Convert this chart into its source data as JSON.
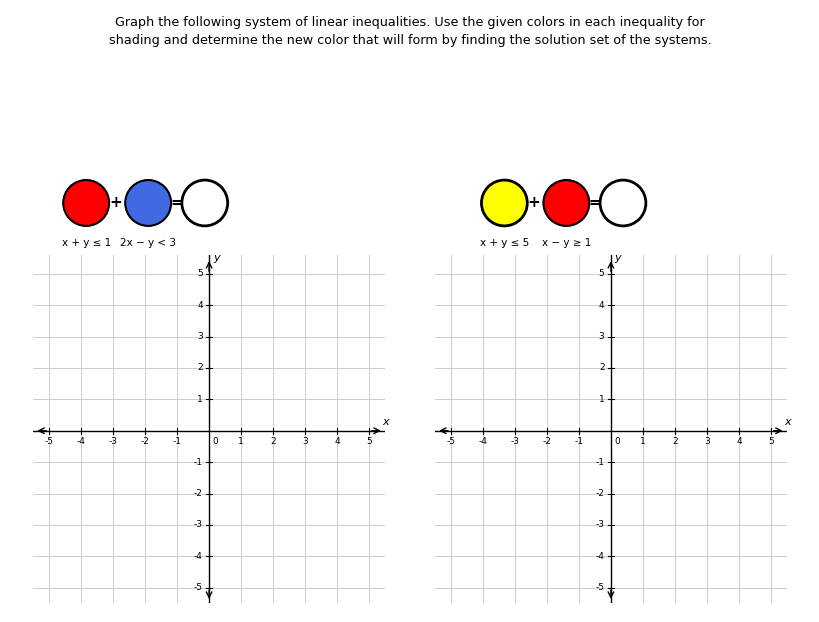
{
  "title_line1": "Graph the following system of linear inequalities. Use the given colors in each inequality for",
  "title_line2": "shading and determine the new color that will form by finding the solution set of the systems.",
  "system1": {
    "ineq1_label": "x + y ≤ 1",
    "ineq2_label": "2x − y < 3",
    "color1": "#FF0000",
    "color2": "#4169E1",
    "result_color": "#FFFFFF"
  },
  "system2": {
    "ineq1_label": "x + y ≤ 5",
    "ineq2_label": "x − y ≥ 1",
    "color1": "#FFFF00",
    "color2": "#FF0000",
    "result_color": "#FFFFFF"
  },
  "axis_range": [
    -5,
    5
  ],
  "tick_vals": [
    -5,
    -4,
    -3,
    -2,
    -1,
    1,
    2,
    3,
    4,
    5
  ],
  "grid_color": "#CCCCCC",
  "background_color": "#FFFFFF",
  "plus_sign": "+",
  "equals_sign": "="
}
